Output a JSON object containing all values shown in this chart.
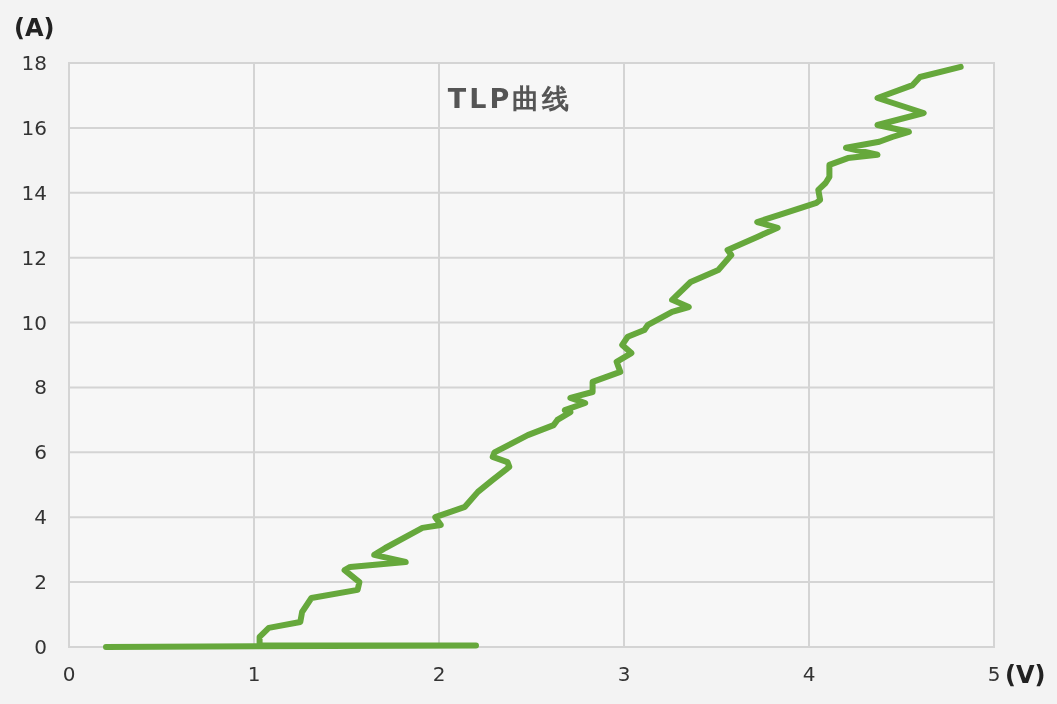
{
  "chart_data": {
    "type": "line",
    "title": "TLP曲线",
    "xlabel": "(V)",
    "ylabel": "(A)",
    "color": "#66a83c",
    "grid": true,
    "xlim": [
      0,
      5
    ],
    "ylim": [
      0,
      18
    ],
    "xticks": [
      0,
      1,
      2,
      3,
      4,
      5
    ],
    "yticks": [
      0,
      2,
      4,
      6,
      8,
      10,
      12,
      14,
      16,
      18
    ],
    "x": [
      0.2,
      2.2,
      1.03,
      1.03,
      1.08,
      1.25,
      1.26,
      1.31,
      1.56,
      1.57,
      1.49,
      1.52,
      1.82,
      1.65,
      1.71,
      1.91,
      2.01,
      1.98,
      2.14,
      2.21,
      2.29,
      2.38,
      2.37,
      2.29,
      2.3,
      2.48,
      2.62,
      2.64,
      2.71,
      2.68,
      2.79,
      2.71,
      2.83,
      2.83,
      2.98,
      2.96,
      3.04,
      2.99,
      3.02,
      3.11,
      3.13,
      3.26,
      3.35,
      3.26,
      3.36,
      3.51,
      3.58,
      3.56,
      3.72,
      3.83,
      3.72,
      3.84,
      4.04,
      4.06,
      4.05,
      4.09,
      4.11,
      4.11,
      4.21,
      4.37,
      4.2,
      4.38,
      4.45,
      4.54,
      4.37,
      4.62,
      4.37,
      4.56,
      4.6,
      4.82
    ],
    "values": [
      0,
      0.05,
      0.05,
      0.31,
      0.59,
      0.77,
      1.08,
      1.51,
      1.76,
      2.0,
      2.37,
      2.47,
      2.62,
      2.84,
      3.05,
      3.67,
      3.76,
      4.0,
      4.32,
      4.78,
      5.15,
      5.55,
      5.7,
      5.86,
      6.0,
      6.53,
      6.84,
      7.0,
      7.24,
      7.3,
      7.52,
      7.68,
      7.86,
      8.17,
      8.48,
      8.79,
      9.06,
      9.31,
      9.56,
      9.77,
      9.93,
      10.33,
      10.48,
      10.7,
      11.25,
      11.62,
      12.08,
      12.24,
      12.64,
      12.92,
      13.1,
      13.32,
      13.69,
      13.78,
      14.09,
      14.3,
      14.49,
      14.86,
      15.07,
      15.17,
      15.39,
      15.57,
      15.72,
      15.88,
      16.09,
      16.46,
      16.92,
      17.32,
      17.57,
      17.88
    ]
  }
}
